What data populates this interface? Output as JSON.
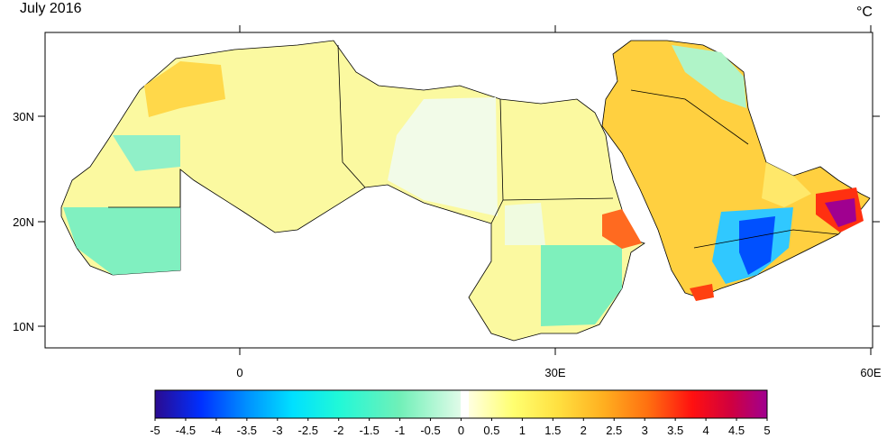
{
  "title": "July 2016",
  "unit": "°C",
  "latitude_labels": [
    "30N",
    "20N",
    "10N"
  ],
  "longitude_labels": [
    "0",
    "30E",
    "60E"
  ],
  "colorbar": {
    "ticks": [
      -5,
      -4.5,
      -4,
      -3.5,
      -3,
      -2.5,
      -2,
      -1.5,
      -1,
      -0.5,
      0,
      0.5,
      1,
      1.5,
      2,
      2.5,
      3,
      3.5,
      4,
      4.5,
      5
    ]
  }
}
